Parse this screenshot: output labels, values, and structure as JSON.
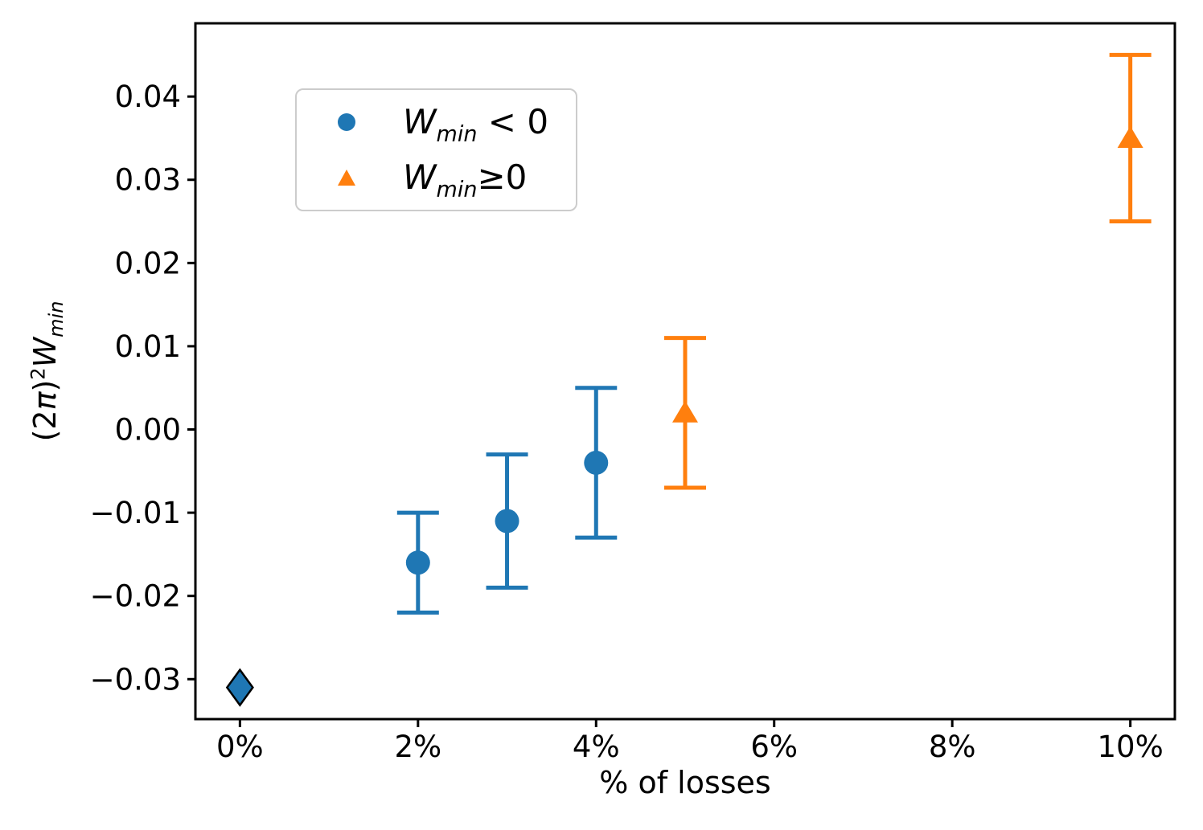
{
  "chart_data": {
    "type": "scatter",
    "title": "",
    "xlabel": "% of losses",
    "ylabel_text": "(2π)²W_min",
    "ylabel_parts": {
      "open": "(2",
      "pi": "π",
      "close": ")",
      "sup": "2",
      "base": "W",
      "sub": "min"
    },
    "xlim": [
      -0.5,
      10.5
    ],
    "ylim": [
      -0.0348,
      0.0488
    ],
    "x_unit": "%",
    "x_ticks": [
      0,
      2,
      4,
      6,
      8,
      10
    ],
    "x_tick_labels": [
      "0%",
      "2%",
      "4%",
      "6%",
      "8%",
      "10%"
    ],
    "y_ticks": [
      -0.03,
      -0.02,
      -0.01,
      0.0,
      0.01,
      0.02,
      0.03,
      0.04
    ],
    "y_tick_labels": [
      "−0.03",
      "−0.02",
      "−0.01",
      "0.00",
      "0.01",
      "0.02",
      "0.03",
      "0.04"
    ],
    "grid": false,
    "series": [
      {
        "name": "W_min < 0",
        "color": "#1f77b4",
        "points": [
          {
            "x": 0,
            "y": -0.031,
            "err": 0,
            "marker": "diamond"
          },
          {
            "x": 2,
            "y": -0.016,
            "err": 0.006,
            "marker": "circle"
          },
          {
            "x": 3,
            "y": -0.011,
            "err": 0.008,
            "marker": "circle"
          },
          {
            "x": 4,
            "y": -0.004,
            "err": 0.009,
            "marker": "circle"
          }
        ]
      },
      {
        "name": "W_min ≥ 0",
        "color": "#ff7f0e",
        "points": [
          {
            "x": 5,
            "y": 0.002,
            "err": 0.009,
            "marker": "triangle"
          },
          {
            "x": 10,
            "y": 0.035,
            "err": 0.01,
            "marker": "triangle"
          }
        ]
      }
    ],
    "legend": {
      "position": "upper-left",
      "entries": [
        {
          "marker": "circle",
          "color": "#1f77b4",
          "label_base": "W",
          "label_sub": "min",
          "label_rest": " < 0"
        },
        {
          "marker": "triangle",
          "color": "#ff7f0e",
          "label_base": "W",
          "label_sub": "min",
          "label_rest": "≥0"
        }
      ]
    },
    "marker_edge_color_diamond": "#000000"
  }
}
